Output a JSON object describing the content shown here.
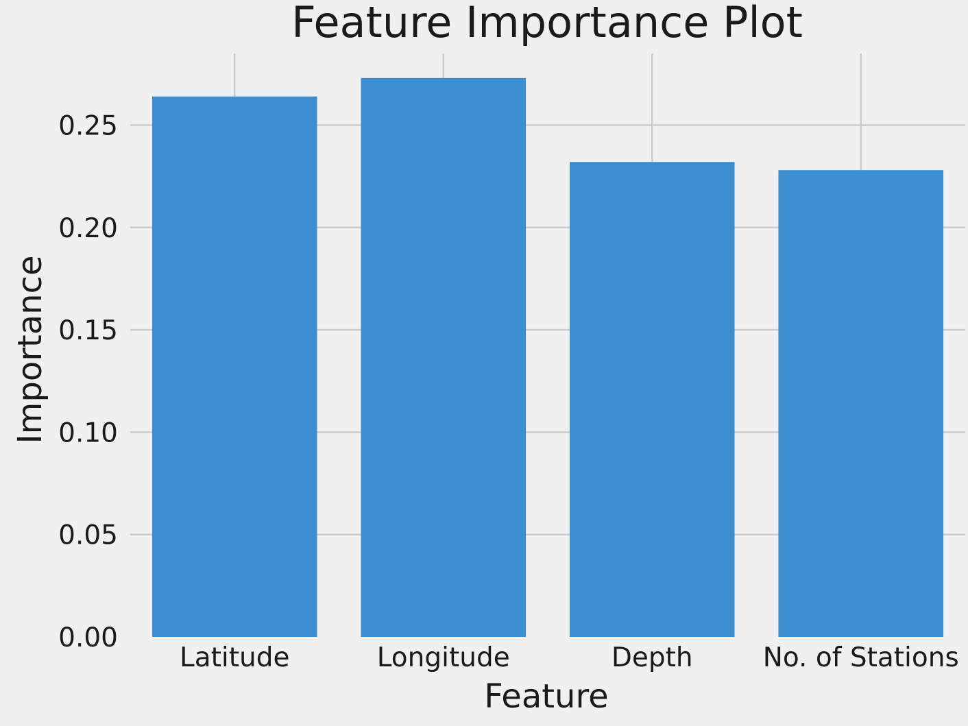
{
  "chart_data": {
    "type": "bar",
    "title": "Feature Importance Plot",
    "xlabel": "Feature",
    "ylabel": "Importance",
    "categories": [
      "Latitude",
      "Longitude",
      "Depth",
      "No. of Stations"
    ],
    "values": [
      0.264,
      0.273,
      0.232,
      0.228
    ],
    "ylim": [
      0,
      0.285
    ],
    "yticks": [
      0.0,
      0.05,
      0.1,
      0.15,
      0.2,
      0.25
    ],
    "ytick_labels": [
      "0.00",
      "0.05",
      "0.10",
      "0.15",
      "0.20",
      "0.25"
    ],
    "grid": true,
    "legend": "none",
    "colors": {
      "bar": "#3b8ecf",
      "background": "#f0f0f0",
      "grid": "#cbcbcb"
    }
  }
}
